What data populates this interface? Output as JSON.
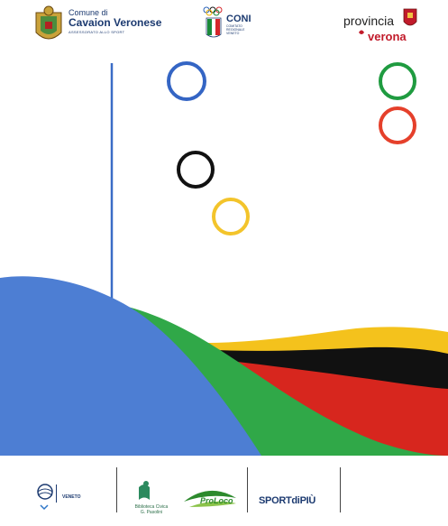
{
  "header": {
    "comune": {
      "line1": "Comune di",
      "line2": "Cavaion Veronese",
      "tagline": "ASSESSORATO ALLO SPORT"
    },
    "coni": {
      "label": "CONI",
      "tagline": "COMITATO REGIONALE VENETO"
    },
    "provincia": {
      "line1": "provincia",
      "line2": "verona"
    }
  },
  "rings": [
    {
      "name": "blue-ring",
      "color": "#3465c4"
    },
    {
      "name": "green-ring",
      "color": "#1f9b40"
    },
    {
      "name": "red-ring",
      "color": "#e5402b"
    },
    {
      "name": "black-ring",
      "color": "#111111"
    },
    {
      "name": "yellow-ring",
      "color": "#f3c42b"
    }
  ],
  "colors": {
    "blue": "#4d7ed3",
    "green": "#30a848",
    "black": "#111111",
    "red": "#d7261e",
    "yellow": "#f4c21c",
    "navy": "#1c3a70"
  },
  "footer": {
    "veneto": "VENETO",
    "biblioteca": "Biblioteca Civica",
    "biblioteca_sub": "G. Pasolini",
    "proloco": "ProLoco",
    "sport": "SPORTdiPIÙ"
  }
}
